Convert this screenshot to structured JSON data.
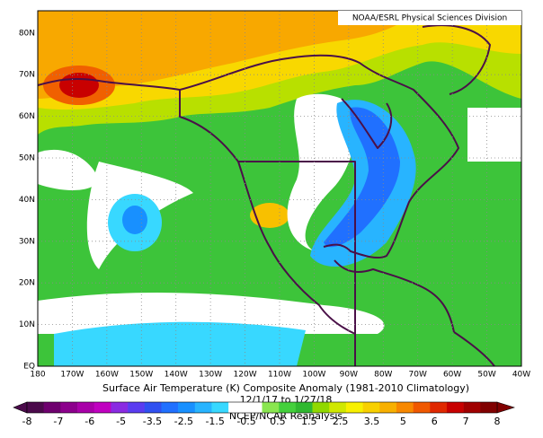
{
  "header": {
    "source": "NOAA/ESRL Physical Sciences Division"
  },
  "map": {
    "lat_labels": [
      "80N",
      "70N",
      "60N",
      "50N",
      "40N",
      "30N",
      "20N",
      "10N",
      "EQ"
    ],
    "lon_labels": [
      "180",
      "170W",
      "160W",
      "150W",
      "140W",
      "130W",
      "120W",
      "110W",
      "100W",
      "90W",
      "80W",
      "70W",
      "60W",
      "50W",
      "40W"
    ]
  },
  "caption": {
    "title": "Surface Air Temperature (K) Composite Anomaly (1981-2010 Climatology)",
    "period": "12/1/17 to 1/27/18",
    "source": "NCEP/NCAR Reanalysis"
  },
  "colorbar": {
    "ticks": [
      -8,
      -7,
      -6,
      -5,
      -3.5,
      -2.5,
      -1.5,
      -0.5,
      0.5,
      1.5,
      2.5,
      3.5,
      5,
      6,
      7,
      8
    ],
    "colors": [
      "#4b0a4b",
      "#6e006e",
      "#8c008c",
      "#a800a8",
      "#c000c0",
      "#8a2be2",
      "#5a3cf0",
      "#3050f0",
      "#2070ff",
      "#1890ff",
      "#28b4ff",
      "#38d8ff",
      "#ffffff",
      "#ffffff",
      "#8ae650",
      "#44d03c",
      "#30b830",
      "#90d800",
      "#d0e800",
      "#f8f000",
      "#f8d000",
      "#f8b000",
      "#f88800",
      "#f05800",
      "#e02800",
      "#c80000",
      "#a00000",
      "#800000"
    ]
  }
}
